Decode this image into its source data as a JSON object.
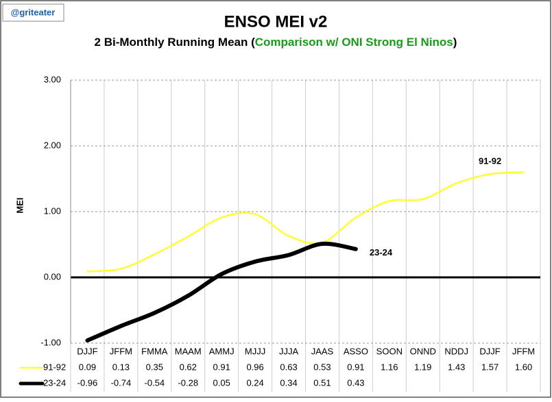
{
  "chart_data": {
    "type": "line",
    "title": "ENSO MEI v2",
    "subtitle_start": "2 Bi-Monthly Running Mean (",
    "subtitle_highlight": "Comparison w/ ONI Strong El Ninos",
    "subtitle_end": ")",
    "credit": "@griteater",
    "ylabel": "MEI",
    "categories": [
      "DJJF",
      "JFFM",
      "FMMA",
      "MAAM",
      "AMMJ",
      "MJJJ",
      "JJJA",
      "JAAS",
      "ASSO",
      "SOON",
      "ONND",
      "NDDJ",
      "DJJF",
      "JFFM"
    ],
    "series": [
      {
        "name": "91-92",
        "color": "#ffff33",
        "values": [
          0.09,
          0.13,
          0.35,
          0.62,
          0.91,
          0.96,
          0.63,
          0.53,
          0.91,
          1.16,
          1.19,
          1.43,
          1.57,
          1.6
        ],
        "value_labels": [
          "0.09",
          "0.13",
          "0.35",
          "0.62",
          "0.91",
          "0.96",
          "0.63",
          "0.53",
          "0.91",
          "1.16",
          "1.19",
          "1.43",
          "1.57",
          "1.60"
        ]
      },
      {
        "name": "23-24",
        "color": "#000000",
        "values": [
          -0.96,
          -0.74,
          -0.54,
          -0.28,
          0.05,
          0.24,
          0.34,
          0.51,
          0.43,
          null,
          null,
          null,
          null,
          null
        ],
        "value_labels": [
          "-0.96",
          "-0.74",
          "-0.54",
          "-0.28",
          "0.05",
          "0.24",
          "0.34",
          "0.51",
          "0.43",
          null,
          null,
          null,
          null,
          null
        ]
      }
    ],
    "annotations": [
      {
        "text": "91-92",
        "index": 12,
        "series": 0
      },
      {
        "text": "23-24",
        "index": 8,
        "series": 1
      }
    ],
    "ylim": [
      -1,
      3
    ],
    "yticks": [
      {
        "value": -1,
        "label": "-1.00"
      },
      {
        "value": 0,
        "label": "0.00"
      },
      {
        "value": 1,
        "label": "1.00"
      },
      {
        "value": 2,
        "label": "2.00"
      },
      {
        "value": 3,
        "label": "3.00"
      }
    ],
    "grid": true
  }
}
